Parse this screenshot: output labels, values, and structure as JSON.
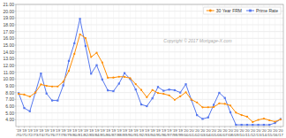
{
  "chart_data": {
    "type": "line",
    "categories": [
      "'19\n/70",
      "'19\n/71",
      "'19\n/72",
      "'19\n/73",
      "'19\n/74",
      "'19\n/75",
      "'19\n/76",
      "'19\n/77",
      "'19\n/78",
      "'19\n/79",
      "'19\n/80",
      "'19\n/81",
      "'19\n/82",
      "'19\n/83",
      "'19\n/84",
      "'19\n/85",
      "'19\n/86",
      "'19\n/87",
      "'19\n/88",
      "'19\n/89",
      "'19\n/90",
      "'19\n/91",
      "'19\n/92",
      "'19\n/93",
      "'19\n/94",
      "'19\n/95",
      "'19\n/96",
      "'19\n/97",
      "'19\n/98",
      "'19\n/99",
      "'20\n/00",
      "'20\n/01",
      "'20\n/02",
      "'20\n/03",
      "'20\n/04",
      "'20\n/05",
      "'20\n/06",
      "'20\n/07",
      "'20\n/08",
      "'20\n/09",
      "'20\n/10",
      "'20\n/11",
      "'20\n/12",
      "'20\n/13",
      "'20\n/14",
      "'20\n/15",
      "'20\n/16",
      "'20\n/17"
    ],
    "series": [
      {
        "name": "30 Year FRM",
        "color": "#ff8c00",
        "marker": "circle",
        "values": [
          7.8,
          7.7,
          7.4,
          8.0,
          9.2,
          9.0,
          8.9,
          8.9,
          9.6,
          11.2,
          13.7,
          16.6,
          16.04,
          13.24,
          13.88,
          12.43,
          10.19,
          10.21,
          10.34,
          10.32,
          10.13,
          9.25,
          8.39,
          7.31,
          8.38,
          7.93,
          7.81,
          7.6,
          6.94,
          7.44,
          8.05,
          6.97,
          6.54,
          5.83,
          5.84,
          5.87,
          6.41,
          6.34,
          6.09,
          5.04,
          4.69,
          4.45,
          3.66,
          3.98,
          4.17,
          3.91,
          3.72,
          4.03
        ]
      },
      {
        "name": "Prime Rate",
        "color": "#5577ee",
        "marker": "square",
        "values": [
          7.91,
          5.72,
          5.25,
          8.02,
          10.81,
          7.86,
          6.84,
          6.83,
          9.06,
          12.67,
          15.27,
          18.87,
          14.86,
          10.79,
          12.04,
          9.93,
          8.33,
          8.21,
          9.32,
          10.87,
          10.01,
          8.46,
          6.25,
          6.0,
          7.15,
          8.83,
          8.27,
          8.44,
          8.35,
          8.0,
          9.23,
          6.92,
          4.68,
          4.12,
          4.34,
          6.19,
          7.96,
          7.21,
          5.09,
          3.25,
          3.25,
          3.25,
          3.25,
          3.25,
          3.25,
          3.25,
          3.51,
          4.1
        ]
      }
    ],
    "ylim": [
      3.0,
      21.0
    ],
    "yticks": [
      {
        "value": 4.0,
        "label": "4.00"
      },
      {
        "value": 5.0,
        "label": "5.00"
      },
      {
        "value": 6.0,
        "label": "6.00"
      },
      {
        "value": 7.0,
        "label": "7.00"
      },
      {
        "value": 8.0,
        "label": "8.00"
      },
      {
        "value": 9.0,
        "label": "9.00"
      },
      {
        "value": 10.0,
        "label": "10.00"
      },
      {
        "value": 11.0,
        "label": "11.00"
      },
      {
        "value": 12.0,
        "label": "12.00"
      },
      {
        "value": 13.0,
        "label": "13.00"
      },
      {
        "value": 14.0,
        "label": "14.00"
      },
      {
        "value": 15.0,
        "label": "15.00"
      },
      {
        "value": 16.0,
        "label": "16.00"
      },
      {
        "value": 17.0,
        "label": "17.00"
      },
      {
        "value": 18.0,
        "label": "18.00"
      },
      {
        "value": 19.0,
        "label": "19.00"
      },
      {
        "value": 20.0,
        "label": "20.00"
      },
      {
        "value": 21.0,
        "label": "21.00"
      }
    ],
    "grid": true,
    "legend": "upper right",
    "annotations": [
      "Copyright © 2017 Mortgage-X.com"
    ]
  }
}
